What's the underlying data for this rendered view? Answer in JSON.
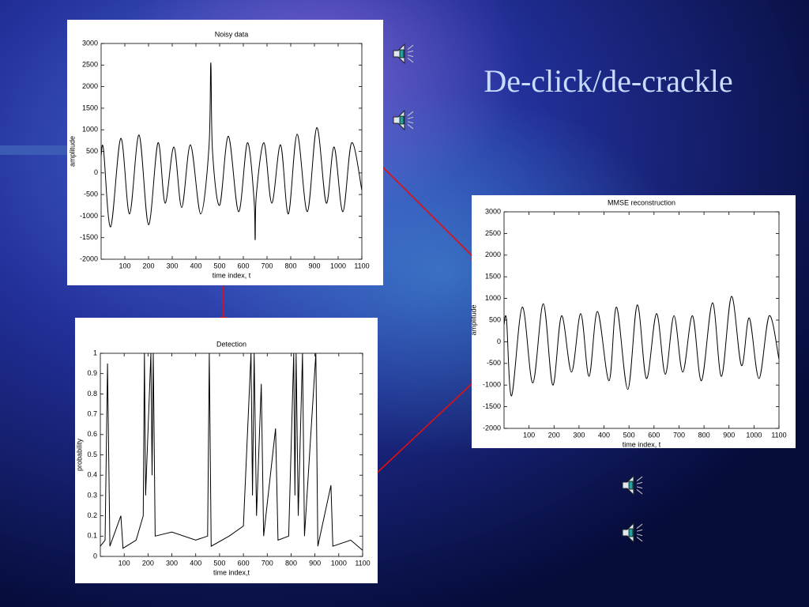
{
  "title": "De-click/de-crackle",
  "chart_data": [
    {
      "type": "line",
      "title": "Noisy data",
      "xlabel": "time index, t",
      "ylabel": "amplitude",
      "x": [
        0,
        10,
        40,
        83,
        120,
        160,
        200,
        240,
        270,
        307,
        340,
        377,
        420,
        455,
        463,
        470,
        500,
        537,
        580,
        617,
        645,
        650,
        655,
        687,
        720,
        757,
        790,
        827,
        870,
        910,
        950,
        983,
        1020,
        1057,
        1100
      ],
      "values": [
        400,
        550,
        -1250,
        800,
        -950,
        880,
        -1200,
        700,
        -700,
        600,
        -800,
        650,
        -950,
        600,
        2550,
        500,
        -750,
        850,
        -900,
        700,
        -600,
        -1550,
        -500,
        700,
        -700,
        650,
        -950,
        900,
        -900,
        1050,
        -700,
        600,
        -900,
        700,
        -400
      ],
      "color": "#000000",
      "smooth": true,
      "xlim": [
        0,
        1100
      ],
      "xticks": [
        100,
        200,
        300,
        400,
        500,
        600,
        700,
        800,
        900,
        1000,
        1100
      ],
      "ylim": [
        -2000,
        3000
      ],
      "yticks": [
        -2000,
        -1500,
        -1000,
        -500,
        0,
        500,
        1000,
        1500,
        2000,
        2500,
        3000
      ]
    },
    {
      "type": "line",
      "title": "MMSE reconstruction",
      "xlabel": "time index, t",
      "ylabel": "amplitude",
      "x": [
        0,
        10,
        30,
        73,
        115,
        157,
        195,
        230,
        270,
        307,
        340,
        374,
        420,
        450,
        495,
        533,
        570,
        610,
        645,
        680,
        715,
        754,
        790,
        834,
        870,
        910,
        950,
        981,
        1020,
        1061,
        1100
      ],
      "values": [
        400,
        500,
        -1250,
        800,
        -950,
        880,
        -1000,
        600,
        -700,
        650,
        -800,
        700,
        -900,
        800,
        -1100,
        850,
        -850,
        650,
        -750,
        600,
        -700,
        600,
        -900,
        900,
        -800,
        1050,
        -550,
        550,
        -850,
        600,
        -400
      ],
      "color": "#000000",
      "smooth": true,
      "xlim": [
        0,
        1100
      ],
      "xticks": [
        100,
        200,
        300,
        400,
        500,
        600,
        700,
        800,
        900,
        1000,
        1100
      ],
      "ylim": [
        -2000,
        3000
      ],
      "yticks": [
        -2000,
        -1500,
        -1000,
        -500,
        0,
        500,
        1000,
        1500,
        2000,
        2500,
        3000
      ]
    },
    {
      "type": "line",
      "title": "Detection",
      "xlabel": "time index,t",
      "ylabel": "probability",
      "x": [
        0,
        20,
        30,
        40,
        86,
        95,
        150,
        180,
        185,
        190,
        212,
        217,
        222,
        230,
        300,
        400,
        450,
        457,
        465,
        540,
        600,
        632,
        638,
        645,
        655,
        675,
        685,
        735,
        745,
        790,
        811,
        816,
        821,
        830,
        848,
        856,
        904,
        912,
        967,
        975,
        1050,
        1100
      ],
      "values": [
        0.05,
        0.08,
        0.95,
        0.05,
        0.2,
        0.04,
        0.08,
        0.2,
        1,
        0.3,
        1,
        0.4,
        1,
        0.1,
        0.12,
        0.08,
        0.1,
        1,
        0.05,
        0.1,
        0.15,
        1,
        0.3,
        1,
        0.2,
        0.85,
        0.1,
        0.63,
        0.08,
        0.1,
        1,
        0.3,
        1,
        0.2,
        1,
        0.1,
        1,
        0.05,
        0.35,
        0.05,
        0.08,
        0.03
      ],
      "color": "#000000",
      "smooth": false,
      "xlim": [
        0,
        1100
      ],
      "xticks": [
        100,
        200,
        300,
        400,
        500,
        600,
        700,
        800,
        900,
        1000,
        1100
      ],
      "ylim": [
        0,
        1
      ],
      "yticks": [
        0,
        0.1,
        0.2,
        0.3,
        0.4,
        0.5,
        0.6,
        0.7,
        0.8,
        0.9,
        1
      ]
    }
  ]
}
